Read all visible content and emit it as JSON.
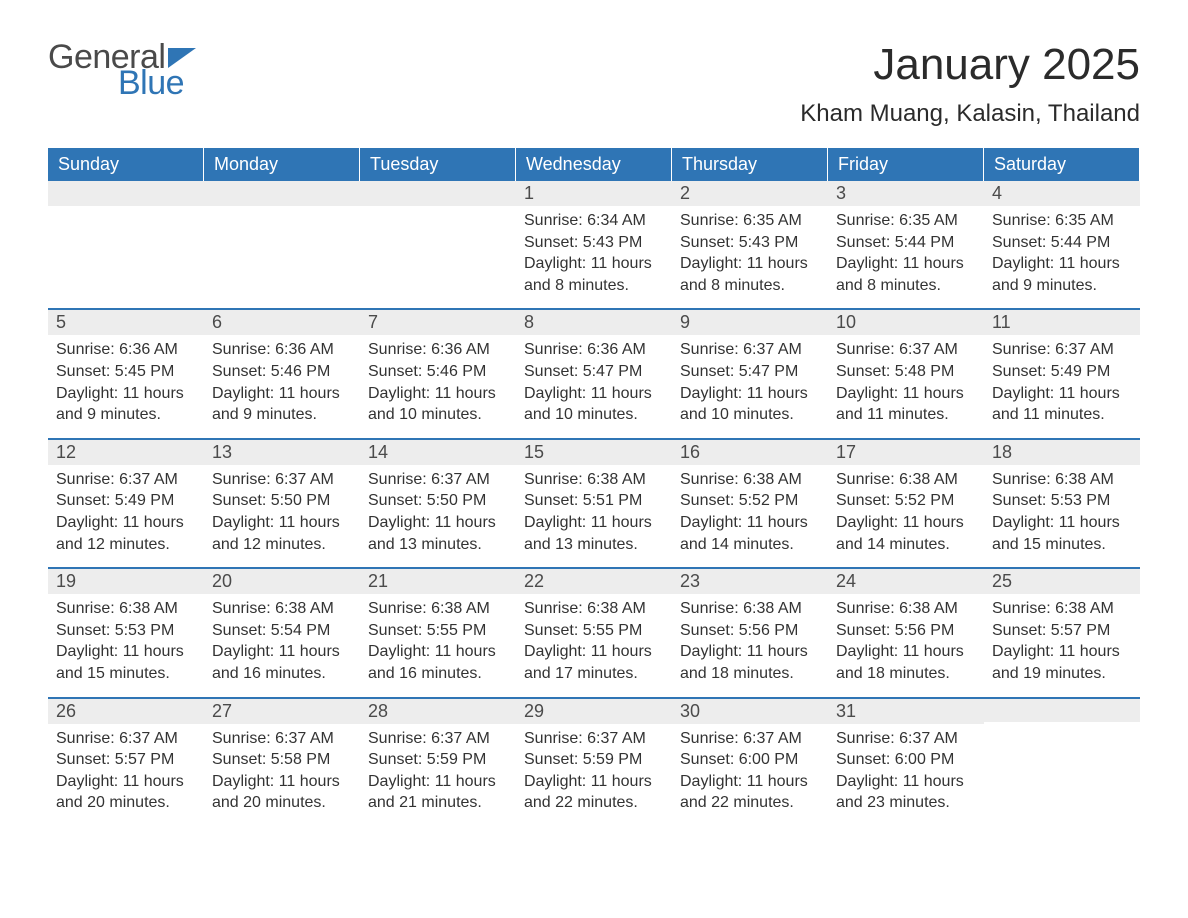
{
  "logo": {
    "text_top": "General",
    "text_bottom": "Blue",
    "color_general": "#4a4a4a",
    "color_blue": "#2f75b5",
    "flag_color": "#2f75b5"
  },
  "header": {
    "month_title": "January 2025",
    "location": "Kham Muang, Kalasin, Thailand"
  },
  "colors": {
    "header_bg": "#2f75b5",
    "header_text": "#ffffff",
    "row_sep": "#2f75b5",
    "daynum_bg": "#ededed",
    "body_bg": "#ffffff",
    "text": "#333333"
  },
  "day_labels": [
    "Sunday",
    "Monday",
    "Tuesday",
    "Wednesday",
    "Thursday",
    "Friday",
    "Saturday"
  ],
  "weeks": [
    [
      null,
      null,
      null,
      {
        "n": "1",
        "sunrise": "Sunrise: 6:34 AM",
        "sunset": "Sunset: 5:43 PM",
        "daylight": "Daylight: 11 hours and 8 minutes."
      },
      {
        "n": "2",
        "sunrise": "Sunrise: 6:35 AM",
        "sunset": "Sunset: 5:43 PM",
        "daylight": "Daylight: 11 hours and 8 minutes."
      },
      {
        "n": "3",
        "sunrise": "Sunrise: 6:35 AM",
        "sunset": "Sunset: 5:44 PM",
        "daylight": "Daylight: 11 hours and 8 minutes."
      },
      {
        "n": "4",
        "sunrise": "Sunrise: 6:35 AM",
        "sunset": "Sunset: 5:44 PM",
        "daylight": "Daylight: 11 hours and 9 minutes."
      }
    ],
    [
      {
        "n": "5",
        "sunrise": "Sunrise: 6:36 AM",
        "sunset": "Sunset: 5:45 PM",
        "daylight": "Daylight: 11 hours and 9 minutes."
      },
      {
        "n": "6",
        "sunrise": "Sunrise: 6:36 AM",
        "sunset": "Sunset: 5:46 PM",
        "daylight": "Daylight: 11 hours and 9 minutes."
      },
      {
        "n": "7",
        "sunrise": "Sunrise: 6:36 AM",
        "sunset": "Sunset: 5:46 PM",
        "daylight": "Daylight: 11 hours and 10 minutes."
      },
      {
        "n": "8",
        "sunrise": "Sunrise: 6:36 AM",
        "sunset": "Sunset: 5:47 PM",
        "daylight": "Daylight: 11 hours and 10 minutes."
      },
      {
        "n": "9",
        "sunrise": "Sunrise: 6:37 AM",
        "sunset": "Sunset: 5:47 PM",
        "daylight": "Daylight: 11 hours and 10 minutes."
      },
      {
        "n": "10",
        "sunrise": "Sunrise: 6:37 AM",
        "sunset": "Sunset: 5:48 PM",
        "daylight": "Daylight: 11 hours and 11 minutes."
      },
      {
        "n": "11",
        "sunrise": "Sunrise: 6:37 AM",
        "sunset": "Sunset: 5:49 PM",
        "daylight": "Daylight: 11 hours and 11 minutes."
      }
    ],
    [
      {
        "n": "12",
        "sunrise": "Sunrise: 6:37 AM",
        "sunset": "Sunset: 5:49 PM",
        "daylight": "Daylight: 11 hours and 12 minutes."
      },
      {
        "n": "13",
        "sunrise": "Sunrise: 6:37 AM",
        "sunset": "Sunset: 5:50 PM",
        "daylight": "Daylight: 11 hours and 12 minutes."
      },
      {
        "n": "14",
        "sunrise": "Sunrise: 6:37 AM",
        "sunset": "Sunset: 5:50 PM",
        "daylight": "Daylight: 11 hours and 13 minutes."
      },
      {
        "n": "15",
        "sunrise": "Sunrise: 6:38 AM",
        "sunset": "Sunset: 5:51 PM",
        "daylight": "Daylight: 11 hours and 13 minutes."
      },
      {
        "n": "16",
        "sunrise": "Sunrise: 6:38 AM",
        "sunset": "Sunset: 5:52 PM",
        "daylight": "Daylight: 11 hours and 14 minutes."
      },
      {
        "n": "17",
        "sunrise": "Sunrise: 6:38 AM",
        "sunset": "Sunset: 5:52 PM",
        "daylight": "Daylight: 11 hours and 14 minutes."
      },
      {
        "n": "18",
        "sunrise": "Sunrise: 6:38 AM",
        "sunset": "Sunset: 5:53 PM",
        "daylight": "Daylight: 11 hours and 15 minutes."
      }
    ],
    [
      {
        "n": "19",
        "sunrise": "Sunrise: 6:38 AM",
        "sunset": "Sunset: 5:53 PM",
        "daylight": "Daylight: 11 hours and 15 minutes."
      },
      {
        "n": "20",
        "sunrise": "Sunrise: 6:38 AM",
        "sunset": "Sunset: 5:54 PM",
        "daylight": "Daylight: 11 hours and 16 minutes."
      },
      {
        "n": "21",
        "sunrise": "Sunrise: 6:38 AM",
        "sunset": "Sunset: 5:55 PM",
        "daylight": "Daylight: 11 hours and 16 minutes."
      },
      {
        "n": "22",
        "sunrise": "Sunrise: 6:38 AM",
        "sunset": "Sunset: 5:55 PM",
        "daylight": "Daylight: 11 hours and 17 minutes."
      },
      {
        "n": "23",
        "sunrise": "Sunrise: 6:38 AM",
        "sunset": "Sunset: 5:56 PM",
        "daylight": "Daylight: 11 hours and 18 minutes."
      },
      {
        "n": "24",
        "sunrise": "Sunrise: 6:38 AM",
        "sunset": "Sunset: 5:56 PM",
        "daylight": "Daylight: 11 hours and 18 minutes."
      },
      {
        "n": "25",
        "sunrise": "Sunrise: 6:38 AM",
        "sunset": "Sunset: 5:57 PM",
        "daylight": "Daylight: 11 hours and 19 minutes."
      }
    ],
    [
      {
        "n": "26",
        "sunrise": "Sunrise: 6:37 AM",
        "sunset": "Sunset: 5:57 PM",
        "daylight": "Daylight: 11 hours and 20 minutes."
      },
      {
        "n": "27",
        "sunrise": "Sunrise: 6:37 AM",
        "sunset": "Sunset: 5:58 PM",
        "daylight": "Daylight: 11 hours and 20 minutes."
      },
      {
        "n": "28",
        "sunrise": "Sunrise: 6:37 AM",
        "sunset": "Sunset: 5:59 PM",
        "daylight": "Daylight: 11 hours and 21 minutes."
      },
      {
        "n": "29",
        "sunrise": "Sunrise: 6:37 AM",
        "sunset": "Sunset: 5:59 PM",
        "daylight": "Daylight: 11 hours and 22 minutes."
      },
      {
        "n": "30",
        "sunrise": "Sunrise: 6:37 AM",
        "sunset": "Sunset: 6:00 PM",
        "daylight": "Daylight: 11 hours and 22 minutes."
      },
      {
        "n": "31",
        "sunrise": "Sunrise: 6:37 AM",
        "sunset": "Sunset: 6:00 PM",
        "daylight": "Daylight: 11 hours and 23 minutes."
      },
      null
    ]
  ]
}
